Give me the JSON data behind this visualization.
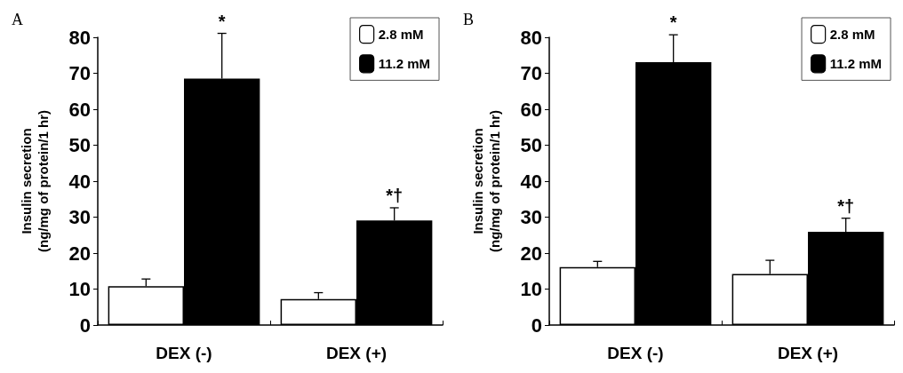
{
  "chart_data": [
    {
      "type": "bar",
      "title": "A",
      "ylabel": "Insulin secretion\n(ng/mg of protein/1 hr)",
      "categories": [
        "DEX (-)",
        "DEX (+)"
      ],
      "series": [
        {
          "name": "2.8 mM",
          "color": "#ffffff",
          "values": [
            10.8,
            7.2
          ],
          "errors": [
            2.0,
            1.8
          ]
        },
        {
          "name": "11.2 mM",
          "color": "#000000",
          "values": [
            68.5,
            29.1
          ],
          "errors": [
            12.6,
            3.5
          ]
        }
      ],
      "ylim": [
        0,
        80
      ],
      "yticks": [
        0,
        10,
        20,
        30,
        40,
        50,
        60,
        70,
        80
      ],
      "grid": false,
      "legend": "top right",
      "annotations": [
        "*",
        "*†"
      ]
    },
    {
      "type": "bar",
      "title": "B",
      "ylabel": "Insulin secretion\n(ng/mg of protein/1 hr)",
      "categories": [
        "DEX (-)",
        "DEX (+)"
      ],
      "series": [
        {
          "name": "2.8 mM",
          "color": "#ffffff",
          "values": [
            16.1,
            14.2
          ],
          "errors": [
            1.6,
            3.8
          ]
        },
        {
          "name": "11.2 mM",
          "color": "#000000",
          "values": [
            73.1,
            25.9
          ],
          "errors": [
            7.6,
            3.8
          ]
        }
      ],
      "ylim": [
        0,
        80
      ],
      "yticks": [
        0,
        10,
        20,
        30,
        40,
        50,
        60,
        70,
        80
      ],
      "grid": false,
      "legend": "top right",
      "annotations": [
        "*",
        "*†"
      ]
    }
  ]
}
